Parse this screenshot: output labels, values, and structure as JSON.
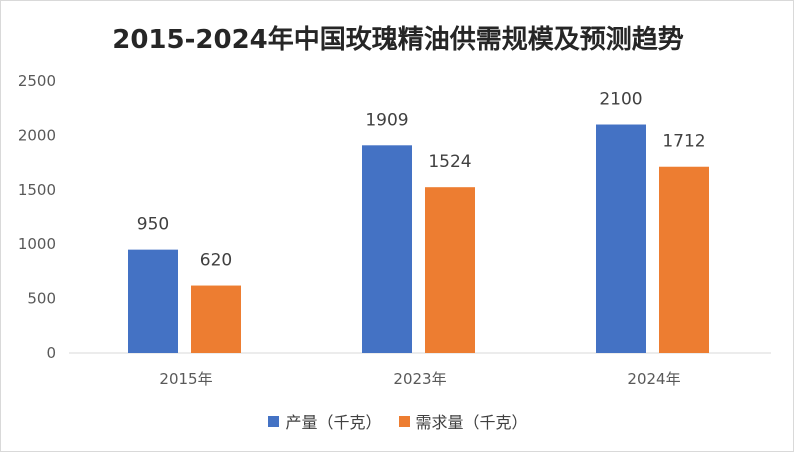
{
  "chart_data": {
    "type": "bar",
    "title": "2015-2024年中国玫瑰精油供需规模及预测趋势",
    "categories": [
      "2015年",
      "2023年",
      "2024年"
    ],
    "series": [
      {
        "name": "产量（千克）",
        "values": [
          950,
          1909,
          2100
        ],
        "color": "#4472C4"
      },
      {
        "name": "需求量（千克）",
        "values": [
          620,
          1524,
          1712
        ],
        "color": "#ED7D31"
      }
    ],
    "ylim": [
      0,
      2500
    ],
    "yticks": [
      0,
      500,
      1000,
      1500,
      2000,
      2500
    ],
    "grid": false,
    "legend": "bottom",
    "data_labels": true
  }
}
